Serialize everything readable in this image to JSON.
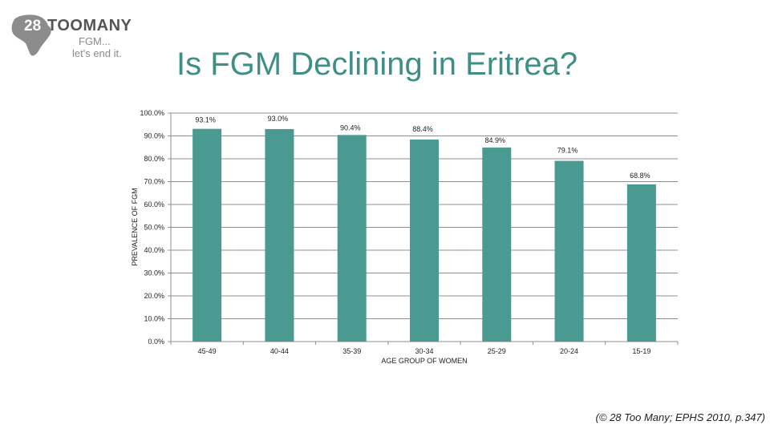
{
  "logo": {
    "number": "28",
    "name": "TOOMANY",
    "tagline_1": "FGM...",
    "tagline_2": "let's end it."
  },
  "slide_title": "Is FGM Declining in Eritrea?",
  "citation": "(© 28 Too Many; EPHS 2010, p.347)",
  "chart_data": {
    "type": "bar",
    "title": "",
    "xlabel": "AGE GROUP OF WOMEN",
    "ylabel": "PREVALENCE OF FGM",
    "categories": [
      "45-49",
      "40-44",
      "35-39",
      "30-34",
      "25-29",
      "20-24",
      "15-19"
    ],
    "values": [
      93.1,
      93.0,
      90.4,
      88.4,
      84.9,
      79.1,
      68.8
    ],
    "value_labels": [
      "93.1%",
      "93.0%",
      "90.4%",
      "88.4%",
      "84.9%",
      "79.1%",
      "68.8%"
    ],
    "ylim": [
      0,
      100
    ],
    "yticks": [
      0,
      10,
      20,
      30,
      40,
      50,
      60,
      70,
      80,
      90,
      100
    ],
    "ytick_labels": [
      "0.0%",
      "10.0%",
      "20.0%",
      "30.0%",
      "40.0%",
      "50.0%",
      "60.0%",
      "70.0%",
      "80.0%",
      "90.0%",
      "100.0%"
    ],
    "grid": true,
    "legend": "none",
    "bar_color": "#4a9a91"
  }
}
